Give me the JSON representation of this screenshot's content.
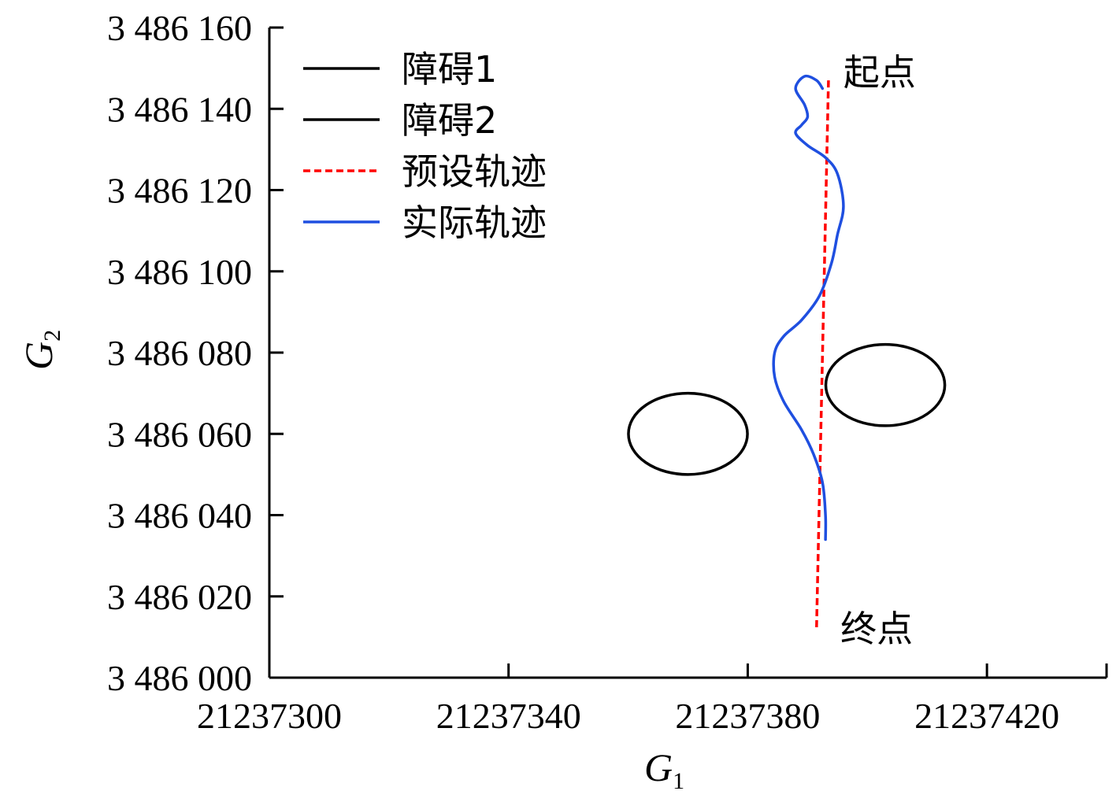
{
  "chart_data": {
    "type": "line",
    "xlabel": "G",
    "xlabel_sub": "1",
    "ylabel": "G",
    "ylabel_sub": "2",
    "xlim": [
      21237300,
      21237440
    ],
    "ylim": [
      3486000,
      3486160
    ],
    "x_ticks": [
      21237300,
      21237340,
      21237380,
      21237420
    ],
    "x_tick_labels": [
      "21237300",
      "21237340",
      "21237380",
      "21237420"
    ],
    "y_ticks": [
      3486000,
      3486020,
      3486040,
      3486060,
      3486080,
      3486100,
      3486120,
      3486140,
      3486160
    ],
    "y_tick_labels": [
      "3 486 000",
      "3 486 020",
      "3 486 040",
      "3 486 060",
      "3 486 080",
      "3 486 100",
      "3 486 120",
      "3 486 140",
      "3 486 160"
    ],
    "legend_position": "top-left",
    "grid": false,
    "series": [
      {
        "name": "障碍1",
        "kind": "ellipse",
        "color": "#000000",
        "center": [
          21237370,
          3486060
        ],
        "radii": [
          10,
          10
        ]
      },
      {
        "name": "障碍2",
        "kind": "ellipse",
        "color": "#000000",
        "center": [
          21237403,
          3486072
        ],
        "radii": [
          10,
          10
        ]
      },
      {
        "name": "预设轨迹",
        "kind": "line",
        "dash": true,
        "color": "#ff0000",
        "x": [
          21237393.5,
          21237391.5
        ],
        "y": [
          3486147,
          3486012
        ]
      },
      {
        "name": "实际轨迹",
        "kind": "line",
        "color": "#1f4fe0",
        "x": [
          21237392.5,
          21237391.5,
          21237389.5,
          21237388,
          21237389.5,
          21237390,
          21237389,
          21237388,
          21237390,
          21237393,
          21237395,
          21237396,
          21237395,
          21237394,
          21237392,
          21237389,
          21237386,
          21237384.5,
          21237384.5,
          21237386,
          21237389,
          21237391,
          21237392.5,
          21237393,
          21237393
        ],
        "y": [
          3486145,
          3486147,
          3486148,
          3486145,
          3486141,
          3486138,
          3486136,
          3486134,
          3486131,
          3486128,
          3486124,
          3486116,
          3486109,
          3486102,
          3486094,
          3486088,
          3486084,
          3486080,
          3486074,
          3486068,
          3486061,
          3486055,
          3486048,
          3486040,
          3486034
        ]
      }
    ],
    "annotations": [
      {
        "text": "起点",
        "x": 21237396,
        "y": 3486149
      },
      {
        "text": "终点",
        "x": 21237395.5,
        "y": 3486012
      }
    ]
  }
}
